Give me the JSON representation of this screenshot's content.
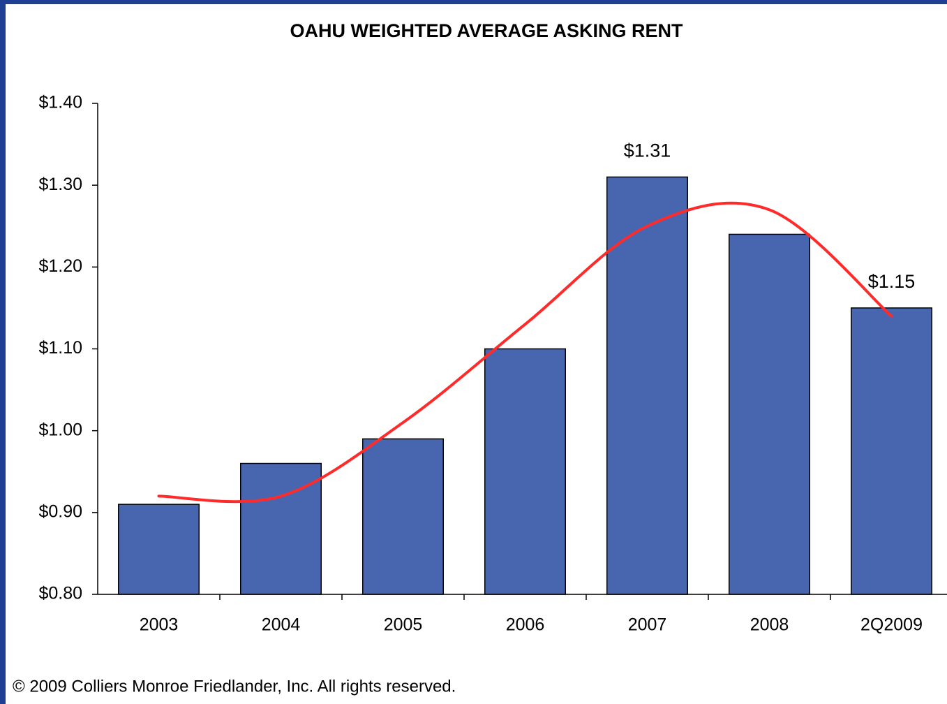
{
  "chart_data": {
    "type": "bar",
    "title": "OAHU WEIGHTED AVERAGE ASKING RENT",
    "categories": [
      "2003",
      "2004",
      "2005",
      "2006",
      "2007",
      "2008",
      "2Q2009"
    ],
    "values": [
      0.91,
      0.96,
      0.99,
      1.1,
      1.31,
      1.24,
      1.15
    ],
    "value_labels": [
      null,
      null,
      null,
      null,
      "$1.31",
      null,
      "$1.15"
    ],
    "color": "#4866b0",
    "trendline": {
      "color": "#ff2a2a",
      "values": [
        0.92,
        0.92,
        1.01,
        1.13,
        1.25,
        1.27,
        1.14
      ]
    },
    "ylim": [
      0.8,
      1.4
    ],
    "yticks": [
      {
        "value": 0.8,
        "label": "$0.80"
      },
      {
        "value": 0.9,
        "label": "$0.90"
      },
      {
        "value": 1.0,
        "label": "$1.00"
      },
      {
        "value": 1.1,
        "label": "$1.10"
      },
      {
        "value": 1.2,
        "label": "$1.20"
      },
      {
        "value": 1.3,
        "label": "$1.30"
      },
      {
        "value": 1.4,
        "label": "$1.40"
      }
    ],
    "grid": false,
    "footer": "© 2009 Colliers Monroe Friedlander, Inc. All rights reserved."
  }
}
